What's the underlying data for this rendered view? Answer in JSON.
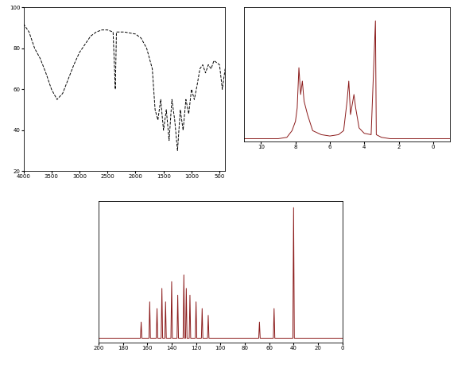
{
  "chart_data": [
    {
      "type": "line",
      "x": [
        4000,
        3900,
        3800,
        3700,
        3600,
        3500,
        3400,
        3300,
        3200,
        3100,
        3000,
        2900,
        2800,
        2700,
        2600,
        2500,
        2400,
        2360,
        2340,
        2200,
        2000,
        1900,
        1800,
        1700,
        1650,
        1600,
        1550,
        1500,
        1450,
        1400,
        1350,
        1300,
        1250,
        1200,
        1150,
        1100,
        1050,
        1000,
        950,
        900,
        850,
        800,
        750,
        700,
        650,
        600,
        500,
        450,
        400
      ],
      "values": [
        92,
        88,
        80,
        75,
        68,
        60,
        55,
        58,
        65,
        72,
        78,
        82,
        86,
        88,
        89,
        89,
        88,
        60,
        88,
        88,
        87,
        85,
        80,
        70,
        50,
        45,
        55,
        40,
        50,
        35,
        55,
        45,
        30,
        50,
        40,
        55,
        48,
        60,
        55,
        62,
        70,
        72,
        68,
        72,
        70,
        74,
        72,
        60,
        70
      ],
      "color": "#000000",
      "line_style": "dashed",
      "xlim": [
        4000,
        400
      ],
      "xticks": [
        4000,
        3500,
        3000,
        2500,
        2000,
        1500,
        1000,
        500
      ],
      "ylim": [
        20,
        100
      ],
      "yticks": [
        20,
        40,
        60,
        80,
        100
      ]
    },
    {
      "type": "line",
      "x": [
        11,
        10,
        9,
        8.5,
        8.2,
        8.0,
        7.9,
        7.8,
        7.7,
        7.6,
        7.5,
        7.4,
        7.3,
        7.1,
        7.0,
        6.5,
        6.0,
        5.5,
        5.2,
        5.0,
        4.9,
        4.8,
        4.6,
        4.5,
        4.3,
        4.0,
        3.6,
        3.35,
        3.3,
        3.0,
        2.5,
        2.0,
        1.0,
        0,
        -1
      ],
      "values": [
        0.02,
        0.02,
        0.02,
        0.03,
        0.08,
        0.15,
        0.25,
        0.55,
        0.35,
        0.45,
        0.3,
        0.25,
        0.2,
        0.12,
        0.08,
        0.05,
        0.04,
        0.05,
        0.08,
        0.3,
        0.45,
        0.2,
        0.35,
        0.25,
        0.1,
        0.06,
        0.05,
        0.9,
        0.05,
        0.03,
        0.02,
        0.02,
        0.02,
        0.02,
        0.02
      ],
      "color": "#8b1a1a",
      "line_style": "solid",
      "xlim": [
        11,
        -1
      ],
      "xticks": [
        10,
        8,
        6,
        4,
        2,
        0
      ],
      "ylim": [
        0,
        1
      ],
      "tick_labels": "x"
    },
    {
      "type": "line",
      "x": [
        200,
        165.6,
        165,
        164.4,
        158.6,
        158,
        157.4,
        152.6,
        152,
        151.4,
        148.6,
        148,
        147.4,
        145.6,
        145,
        144.4,
        140.6,
        140,
        139.4,
        135.6,
        135,
        134.4,
        130.6,
        130,
        129.4,
        128.6,
        128,
        127.4,
        125.6,
        125,
        124.4,
        120.6,
        120,
        119.4,
        115.6,
        115,
        114.4,
        110.6,
        110,
        109.4,
        68.6,
        68,
        67.4,
        56.6,
        56,
        55.4,
        40.6,
        40,
        39.4,
        0
      ],
      "values": [
        0.03,
        0.03,
        0.15,
        0.03,
        0.03,
        0.3,
        0.03,
        0.03,
        0.25,
        0.03,
        0.03,
        0.4,
        0.03,
        0.03,
        0.3,
        0.03,
        0.03,
        0.45,
        0.03,
        0.03,
        0.35,
        0.03,
        0.03,
        0.5,
        0.03,
        0.03,
        0.4,
        0.03,
        0.03,
        0.35,
        0.03,
        0.03,
        0.3,
        0.03,
        0.03,
        0.25,
        0.03,
        0.03,
        0.2,
        0.03,
        0.03,
        0.15,
        0.03,
        0.03,
        0.25,
        0.03,
        0.03,
        1.0,
        0.03,
        0.03
      ],
      "color": "#8b1a1a",
      "line_style": "solid",
      "xlim": [
        200,
        0
      ],
      "xticks": [
        200,
        180,
        160,
        140,
        120,
        100,
        80,
        60,
        40,
        20,
        0
      ],
      "ylim": [
        0,
        1.05
      ],
      "tick_labels": "x"
    }
  ]
}
